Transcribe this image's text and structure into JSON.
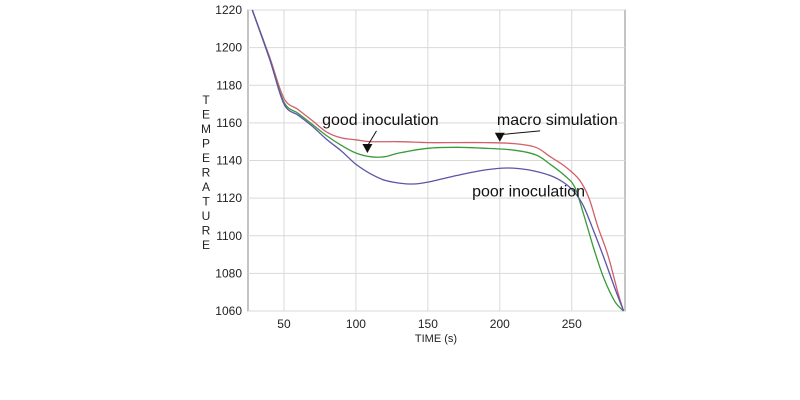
{
  "chart_data": {
    "type": "line",
    "xlabel": "TIME (s)",
    "ylabel": "TEMPERATURE",
    "xlim": [
      25,
      287
    ],
    "ylim": [
      1060,
      1220
    ],
    "xticks": [
      50,
      100,
      150,
      200,
      250
    ],
    "yticks": [
      1060,
      1080,
      1100,
      1120,
      1140,
      1160,
      1180,
      1200,
      1220
    ],
    "grid": true,
    "series": [
      {
        "color": "#d0606a",
        "x": [
          28,
          40,
          50,
          60,
          70,
          80,
          90,
          100,
          110,
          130,
          150,
          170,
          190,
          210,
          225,
          235,
          245,
          255,
          262,
          268,
          275,
          282,
          286
        ],
        "y": [
          1220,
          1195,
          1173,
          1167,
          1161,
          1155,
          1152,
          1151,
          1150,
          1150,
          1149.5,
          1149.5,
          1149.5,
          1149,
          1147,
          1142,
          1137,
          1130,
          1120,
          1105,
          1090,
          1070,
          1060
        ]
      },
      {
        "color": "#3a9a3a",
        "x": [
          28,
          40,
          50,
          60,
          70,
          80,
          90,
          100,
          110,
          120,
          130,
          150,
          170,
          190,
          210,
          225,
          235,
          245,
          252,
          258,
          265,
          272,
          280,
          286
        ],
        "y": [
          1220,
          1194,
          1171,
          1165,
          1159,
          1153,
          1148,
          1144,
          1142,
          1142,
          1144,
          1146.5,
          1147,
          1146.5,
          1145.5,
          1143,
          1138,
          1132,
          1126,
          1112,
          1094,
          1078,
          1065,
          1060
        ]
      },
      {
        "color": "#5b55a8",
        "x": [
          28,
          40,
          50,
          60,
          70,
          80,
          90,
          100,
          110,
          120,
          130,
          140,
          150,
          170,
          190,
          205,
          220,
          235,
          245,
          252,
          258,
          265,
          272,
          280,
          286
        ],
        "y": [
          1220,
          1194,
          1170,
          1164,
          1158,
          1151,
          1145,
          1138,
          1133,
          1129.5,
          1128,
          1127.5,
          1128.5,
          1132,
          1135,
          1136,
          1135,
          1132,
          1128,
          1123,
          1116,
          1103,
          1089,
          1072,
          1060
        ]
      }
    ],
    "annotations": [
      {
        "text": "good inoculation",
        "x": 117,
        "y": 1160,
        "arrow_to": [
          108,
          1144
        ]
      },
      {
        "text": "macro simulation",
        "x": 240,
        "y": 1160,
        "arrow_to": [
          200,
          1150
        ]
      },
      {
        "text": "poor inoculation",
        "x": 220,
        "y": 1122
      }
    ]
  }
}
